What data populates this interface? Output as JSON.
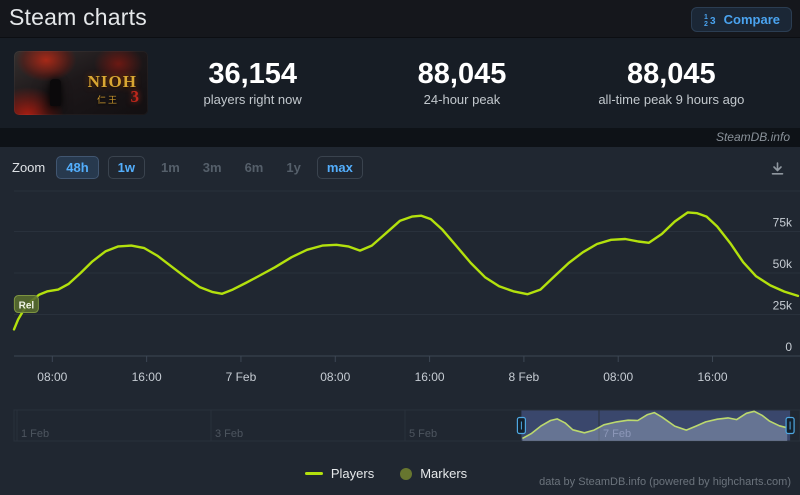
{
  "header": {
    "title": "Steam charts",
    "compare_label": "Compare",
    "compare_icon_digits": [
      "1",
      "2",
      "3"
    ]
  },
  "stats": {
    "game": {
      "title_text": "NIOH",
      "kanji": "仁王",
      "numeral": "3"
    },
    "items": [
      {
        "value": "36,154",
        "label": "players right now"
      },
      {
        "value": "88,045",
        "label": "24-hour peak"
      },
      {
        "value": "88,045",
        "label": "all-time peak 9 hours ago"
      }
    ]
  },
  "attribution": {
    "watermark": "SteamDB.info",
    "credits": "data by SteamDB.info (powered by highcharts.com)"
  },
  "toolbar": {
    "zoom_label": "Zoom",
    "ranges": [
      {
        "label": "48h",
        "state": "active"
      },
      {
        "label": "1w",
        "state": "enabled"
      },
      {
        "label": "1m",
        "state": "disabled"
      },
      {
        "label": "3m",
        "state": "disabled"
      },
      {
        "label": "6m",
        "state": "disabled"
      },
      {
        "label": "1y",
        "state": "disabled"
      },
      {
        "label": "max",
        "state": "enabled"
      }
    ]
  },
  "legend": {
    "items": [
      {
        "label": "Players",
        "swatch": "line",
        "color": "#b3e10d"
      },
      {
        "label": "Markers",
        "swatch": "circle",
        "color": "#67762f"
      }
    ]
  },
  "chart_data": {
    "type": "line",
    "title": "",
    "xlabel": "",
    "ylabel": "",
    "grid": true,
    "legend_position": "bottom",
    "y_axis": {
      "side": "right",
      "unit": "players",
      "range_k": [
        0,
        99
      ]
    },
    "y_ticks": [
      {
        "v": 75,
        "label": "75k"
      },
      {
        "v": 50,
        "label": "50k"
      },
      {
        "v": 25,
        "label": "25k"
      },
      {
        "v": 0,
        "label": "0"
      }
    ],
    "x_axis": {
      "range_hours": [
        4.75,
        71.25
      ],
      "origin": "6 Feb 00:00",
      "ticks": [
        {
          "t": 8,
          "label": "08:00"
        },
        {
          "t": 16,
          "label": "16:00"
        },
        {
          "t": 24,
          "label": "7 Feb"
        },
        {
          "t": 32,
          "label": "08:00"
        },
        {
          "t": 40,
          "label": "16:00"
        },
        {
          "t": 48,
          "label": "8 Feb"
        },
        {
          "t": 56,
          "label": "08:00"
        },
        {
          "t": 64,
          "label": "16:00"
        }
      ]
    },
    "series": [
      {
        "name": "Players",
        "color": "#b3e10d",
        "unit_k": true,
        "points": [
          [
            4.75,
            16
          ],
          [
            5.1,
            22
          ],
          [
            5.6,
            28
          ],
          [
            6.2,
            33
          ],
          [
            6.9,
            37
          ],
          [
            7.6,
            39
          ],
          [
            8.5,
            40
          ],
          [
            9.4,
            43.5
          ],
          [
            10.4,
            50
          ],
          [
            11.4,
            57
          ],
          [
            12.5,
            63
          ],
          [
            13.6,
            66
          ],
          [
            14.7,
            66.5
          ],
          [
            15.8,
            65
          ],
          [
            16.9,
            60.5
          ],
          [
            18.1,
            54
          ],
          [
            19.3,
            47.5
          ],
          [
            20.5,
            41.5
          ],
          [
            21.6,
            38.5
          ],
          [
            22.4,
            37.5
          ],
          [
            23.3,
            40
          ],
          [
            24.4,
            44
          ],
          [
            25.6,
            48.5
          ],
          [
            26.9,
            53.5
          ],
          [
            28.3,
            59.5
          ],
          [
            29.6,
            64
          ],
          [
            30.9,
            66.5
          ],
          [
            32.1,
            67
          ],
          [
            33.1,
            66
          ],
          [
            34.1,
            63.5
          ],
          [
            35.1,
            66.5
          ],
          [
            36.3,
            74
          ],
          [
            37.5,
            81.5
          ],
          [
            38.5,
            84
          ],
          [
            39.3,
            84.5
          ],
          [
            40.1,
            82.5
          ],
          [
            41.1,
            76
          ],
          [
            42.3,
            66
          ],
          [
            43.5,
            56
          ],
          [
            44.7,
            47.5
          ],
          [
            45.9,
            42
          ],
          [
            47.1,
            39
          ],
          [
            48.3,
            37.2
          ],
          [
            49.4,
            40
          ],
          [
            50.6,
            48
          ],
          [
            51.8,
            56
          ],
          [
            53,
            62.5
          ],
          [
            54.2,
            67.5
          ],
          [
            55.4,
            70
          ],
          [
            56.6,
            70.5
          ],
          [
            57.7,
            69
          ],
          [
            58.6,
            68.2
          ],
          [
            59.7,
            73.5
          ],
          [
            60.8,
            81
          ],
          [
            61.9,
            86.5
          ],
          [
            62.7,
            86
          ],
          [
            63.5,
            84
          ],
          [
            64.4,
            78
          ],
          [
            65.5,
            68
          ],
          [
            66.6,
            56.5
          ],
          [
            67.7,
            48
          ],
          [
            68.9,
            42.5
          ],
          [
            70.1,
            38.8
          ],
          [
            71.25,
            36.2
          ]
        ]
      }
    ],
    "flags": [
      {
        "label": "Rel",
        "t": 5.8,
        "v": 31
      }
    ],
    "navigator": {
      "range_days": [
        0,
        8.07
      ],
      "selection_days": [
        5.2,
        7.97
      ],
      "ticks": [
        {
          "d": 0,
          "label": "1 Feb"
        },
        {
          "d": 2,
          "label": "3 Feb"
        },
        {
          "d": 4,
          "label": "5 Feb"
        },
        {
          "d": 6,
          "label": "7 Feb"
        }
      ],
      "points": [
        [
          5.21,
          8
        ],
        [
          5.3,
          22
        ],
        [
          5.4,
          45
        ],
        [
          5.5,
          62
        ],
        [
          5.57,
          67
        ],
        [
          5.65,
          55
        ],
        [
          5.73,
          34
        ],
        [
          5.85,
          25
        ],
        [
          5.95,
          33
        ],
        [
          6.05,
          49
        ],
        [
          6.18,
          58
        ],
        [
          6.3,
          63
        ],
        [
          6.4,
          62
        ],
        [
          6.5,
          80
        ],
        [
          6.57,
          86
        ],
        [
          6.65,
          72
        ],
        [
          6.78,
          45
        ],
        [
          6.9,
          33
        ],
        [
          7.0,
          45
        ],
        [
          7.1,
          58
        ],
        [
          7.22,
          66
        ],
        [
          7.33,
          70
        ],
        [
          7.42,
          65
        ],
        [
          7.52,
          84
        ],
        [
          7.6,
          90
        ],
        [
          7.68,
          78
        ],
        [
          7.76,
          60
        ],
        [
          7.86,
          46
        ],
        [
          7.94,
          40
        ]
      ]
    },
    "colors": {
      "panel_bg": "#202731",
      "grid": "#29313c",
      "axis": "#3d4754",
      "tick_text": "#c6ccd3",
      "nav_label_out": "#4d555f",
      "nav_label_in": "#7e88b0",
      "nav_selection": "rgba(83,103,167,0.5)",
      "nav_area": "rgba(158,171,195,0.45)",
      "nav_line": "#bcd96e",
      "handle_border": "#4ea7e1",
      "handle_fill": "#13202c",
      "flag_bg": "rgba(86,107,47,0.9)",
      "flag_border": "#7d9440",
      "flag_text": "#eef2e4"
    }
  }
}
